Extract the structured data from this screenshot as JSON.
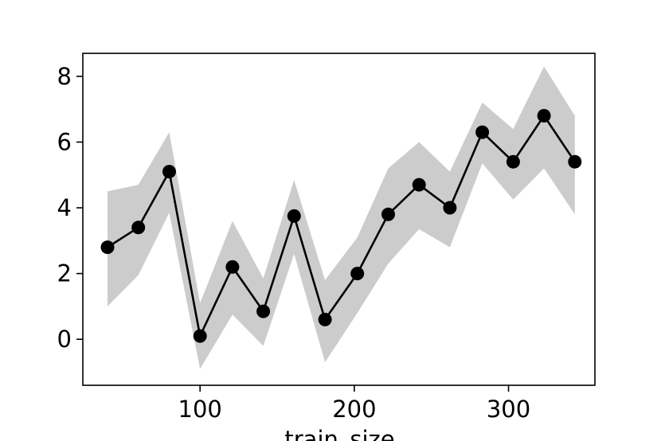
{
  "chart_data": {
    "type": "line",
    "title": "",
    "xlabel": "train_size",
    "ylabel": "",
    "xlim": [
      24,
      356
    ],
    "ylim": [
      -1.4,
      8.7
    ],
    "grid": false,
    "legend": "none",
    "x_ticks": [
      100,
      200,
      300
    ],
    "y_ticks": [
      0,
      2,
      4,
      6,
      8
    ],
    "x": [
      40,
      60,
      80,
      100,
      121,
      141,
      161,
      181,
      202,
      222,
      242,
      262,
      283,
      303,
      323,
      343
    ],
    "series": [
      {
        "name": "",
        "values": [
          2.8,
          3.4,
          5.1,
          0.1,
          2.2,
          0.85,
          3.75,
          0.6,
          2.0,
          3.8,
          4.7,
          4.0,
          6.3,
          5.4,
          6.8,
          5.4
        ],
        "band_upper": [
          4.5,
          4.7,
          6.3,
          1.1,
          3.6,
          1.85,
          4.85,
          1.8,
          3.1,
          5.2,
          6.0,
          5.1,
          7.2,
          6.4,
          8.3,
          6.8
        ],
        "band_lower": [
          1.0,
          1.95,
          3.85,
          -0.9,
          0.75,
          -0.2,
          2.6,
          -0.7,
          0.8,
          2.3,
          3.35,
          2.8,
          5.35,
          4.25,
          5.2,
          3.8
        ],
        "color": "#000000",
        "band_color": "#cccccc"
      }
    ]
  }
}
